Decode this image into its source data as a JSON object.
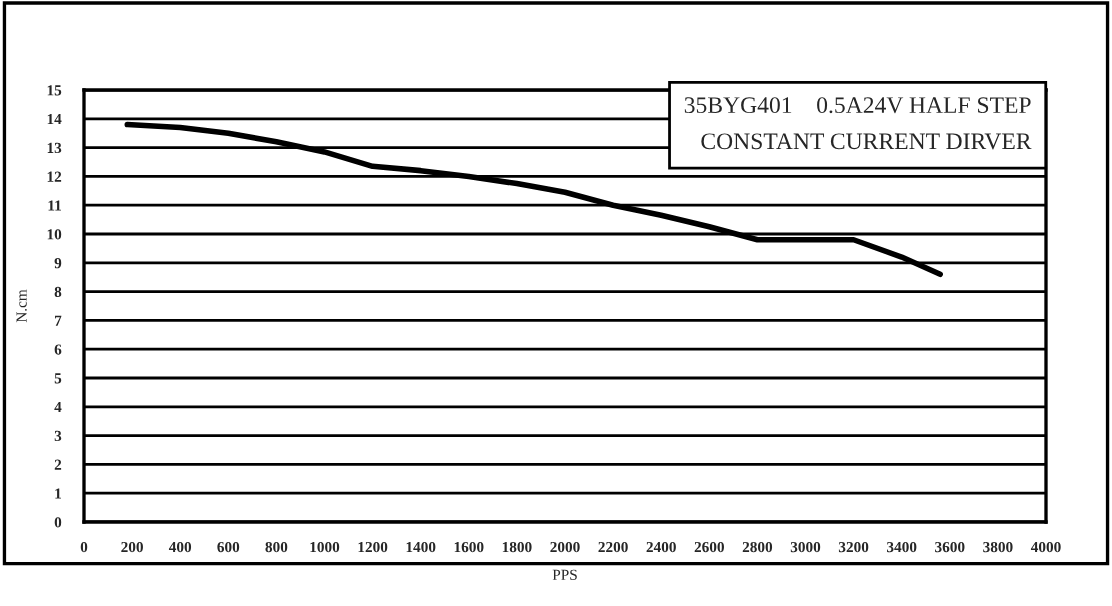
{
  "chart_data": {
    "type": "line",
    "xlabel": "PPS",
    "ylabel": "N.cm",
    "annotations": [
      "35BYG401    0.5A24V HALF STEP\nCONSTANT CURRENT DIRVER"
    ],
    "series": [
      {
        "color": "#000000",
        "x": [
          180,
          400,
          600,
          800,
          1000,
          1200,
          1400,
          1600,
          1800,
          2000,
          2200,
          2400,
          2600,
          2800,
          3000,
          3200,
          3400,
          3560
        ],
        "values": [
          13.8,
          13.7,
          13.5,
          13.2,
          12.85,
          12.35,
          12.2,
          12.0,
          11.75,
          11.45,
          11.0,
          10.65,
          10.25,
          9.8,
          9.8,
          9.8,
          9.2,
          8.6
        ]
      }
    ],
    "xlim": [
      0,
      4000
    ],
    "xticks": [
      0,
      200,
      400,
      600,
      800,
      1000,
      1200,
      1400,
      1600,
      1800,
      2000,
      2200,
      2400,
      2600,
      2800,
      3000,
      3200,
      3400,
      3600,
      3800,
      4000
    ],
    "ylim": [
      0,
      15
    ],
    "yticks": [
      0,
      1,
      2,
      3,
      4,
      5,
      6,
      7,
      8,
      9,
      10,
      11,
      12,
      13,
      14,
      15
    ],
    "grid": "y",
    "legend": false,
    "marker": "none",
    "line_style": "solid"
  }
}
